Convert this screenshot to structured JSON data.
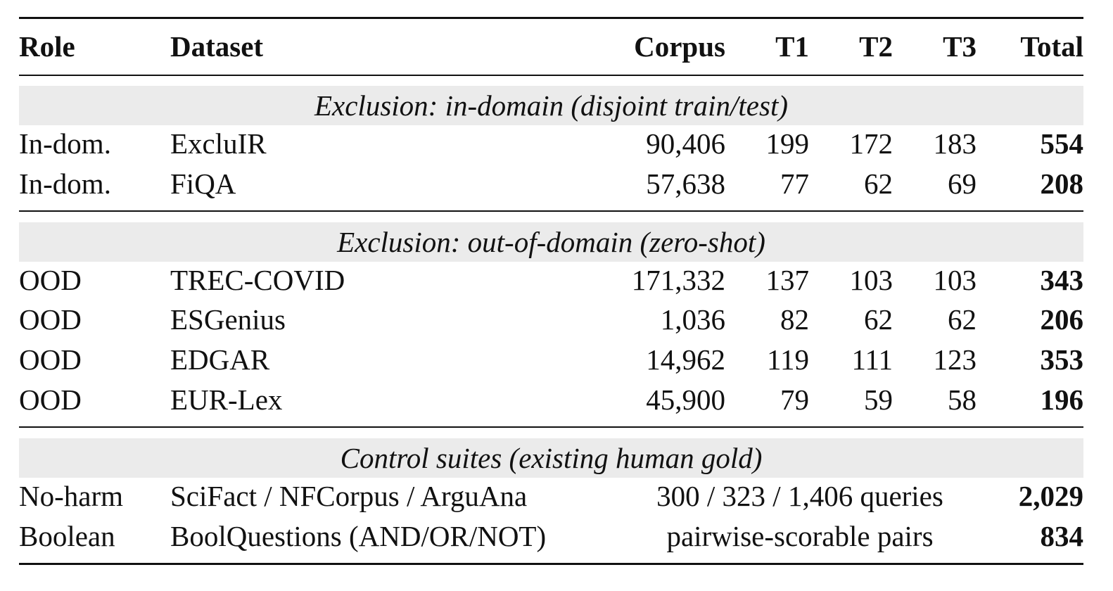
{
  "header": {
    "role": "Role",
    "dataset": "Dataset",
    "corpus": "Corpus",
    "t1": "T1",
    "t2": "T2",
    "t3": "T3",
    "total": "Total"
  },
  "sections": [
    {
      "title": "Exclusion: in-domain (disjoint train/test)",
      "rows": [
        {
          "role": "In-dom.",
          "dataset": "ExcluIR",
          "corpus": "90,406",
          "t1": "199",
          "t2": "172",
          "t3": "183",
          "total": "554"
        },
        {
          "role": "In-dom.",
          "dataset": "FiQA",
          "corpus": "57,638",
          "t1": "77",
          "t2": "62",
          "t3": "69",
          "total": "208"
        }
      ]
    },
    {
      "title": "Exclusion: out-of-domain (zero-shot)",
      "rows": [
        {
          "role": "OOD",
          "dataset": "TREC-COVID",
          "corpus": "171,332",
          "t1": "137",
          "t2": "103",
          "t3": "103",
          "total": "343"
        },
        {
          "role": "OOD",
          "dataset": "ESGenius",
          "corpus": "1,036",
          "t1": "82",
          "t2": "62",
          "t3": "62",
          "total": "206"
        },
        {
          "role": "OOD",
          "dataset": "EDGAR",
          "corpus": "14,962",
          "t1": "119",
          "t2": "111",
          "t3": "123",
          "total": "353"
        },
        {
          "role": "OOD",
          "dataset": "EUR-Lex",
          "corpus": "45,900",
          "t1": "79",
          "t2": "59",
          "t3": "58",
          "total": "196"
        }
      ]
    },
    {
      "title": "Control suites (existing human gold)",
      "rows": [
        {
          "role": "No-harm",
          "dataset": "SciFact / NFCorpus / ArguAna",
          "span": "300 / 323 / 1,406 queries",
          "total": "2,029"
        },
        {
          "role": "Boolean",
          "dataset": "BoolQuestions (AND/OR/NOT)",
          "span": "pairwise-scorable pairs",
          "total": "834"
        }
      ]
    }
  ]
}
